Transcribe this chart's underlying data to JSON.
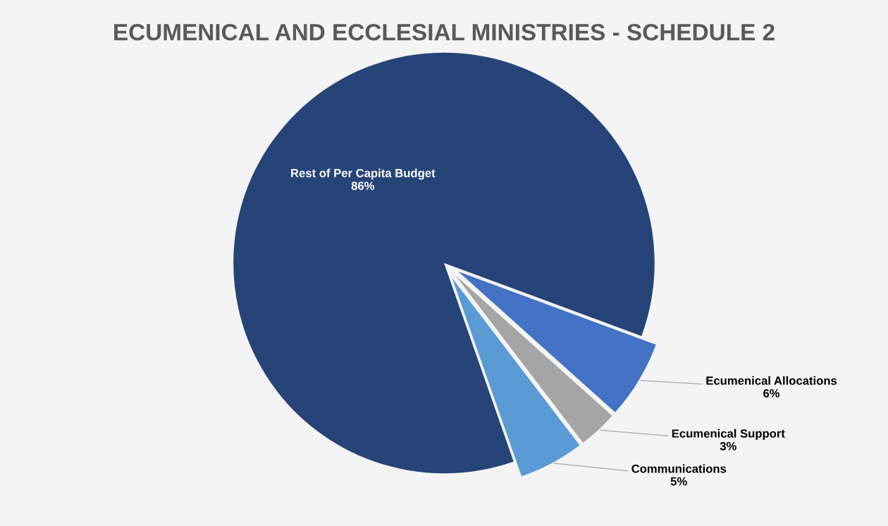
{
  "chart_data": {
    "type": "pie",
    "title": "ECUMENICAL AND ECCLESIAL MINISTRIES - SCHEDULE 2",
    "categories": [
      "Rest of Per Capita Budget",
      "Ecumenical Allocations",
      "Ecumenical Support",
      "Communications"
    ],
    "values": [
      86,
      6,
      3,
      5
    ],
    "value_labels": [
      "86%",
      "6%",
      "3%",
      "5%"
    ],
    "colors": [
      "#264478",
      "#4472c4",
      "#a5a5a5",
      "#5b9bd5"
    ],
    "legend": false
  }
}
